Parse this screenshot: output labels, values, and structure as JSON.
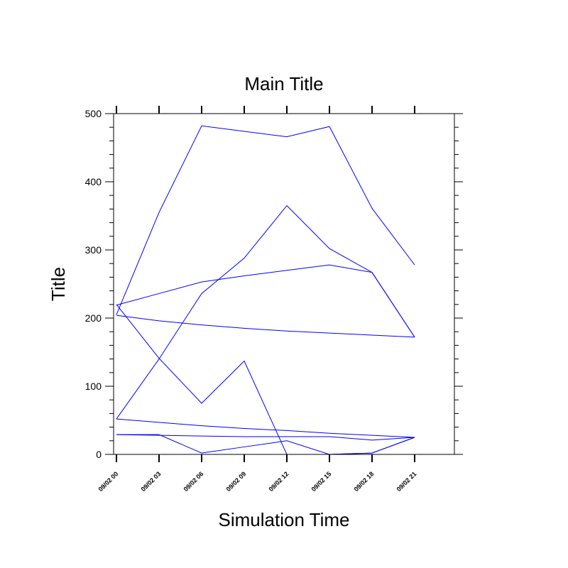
{
  "chart_data": {
    "type": "line",
    "title": "Main Title",
    "xlabel": "Simulation Time",
    "ylabel": "Title",
    "categories": [
      "09/02 00",
      "09/02 03",
      "09/02 06",
      "09/02 09",
      "09/02 12",
      "09/02 15",
      "09/02 18",
      "09/02 21"
    ],
    "ylim": [
      0,
      500
    ],
    "yticks": [
      "0",
      "100",
      "200",
      "300",
      "400",
      "500"
    ],
    "grid": false,
    "series_color": "#0000ff",
    "series": [
      {
        "values": [
          205,
          355,
          482,
          474,
          466,
          481,
          361,
          278
        ]
      },
      {
        "values": [
          219,
          236,
          253,
          262,
          270,
          278,
          267,
          172
        ]
      },
      {
        "values": [
          204,
          196,
          190,
          185,
          181,
          178,
          175,
          172
        ]
      },
      {
        "values": [
          52,
          140,
          236,
          288,
          365,
          302,
          267,
          172
        ]
      },
      {
        "values": [
          220,
          141,
          75,
          137,
          0,
          0,
          2,
          25
        ]
      },
      {
        "values": [
          52,
          47,
          42,
          38,
          35,
          31,
          28,
          25
        ]
      },
      {
        "values": [
          29,
          28,
          27,
          26,
          26,
          26,
          21,
          25
        ]
      },
      {
        "values": [
          29,
          29,
          2,
          11,
          20,
          0,
          2,
          25
        ]
      }
    ]
  }
}
